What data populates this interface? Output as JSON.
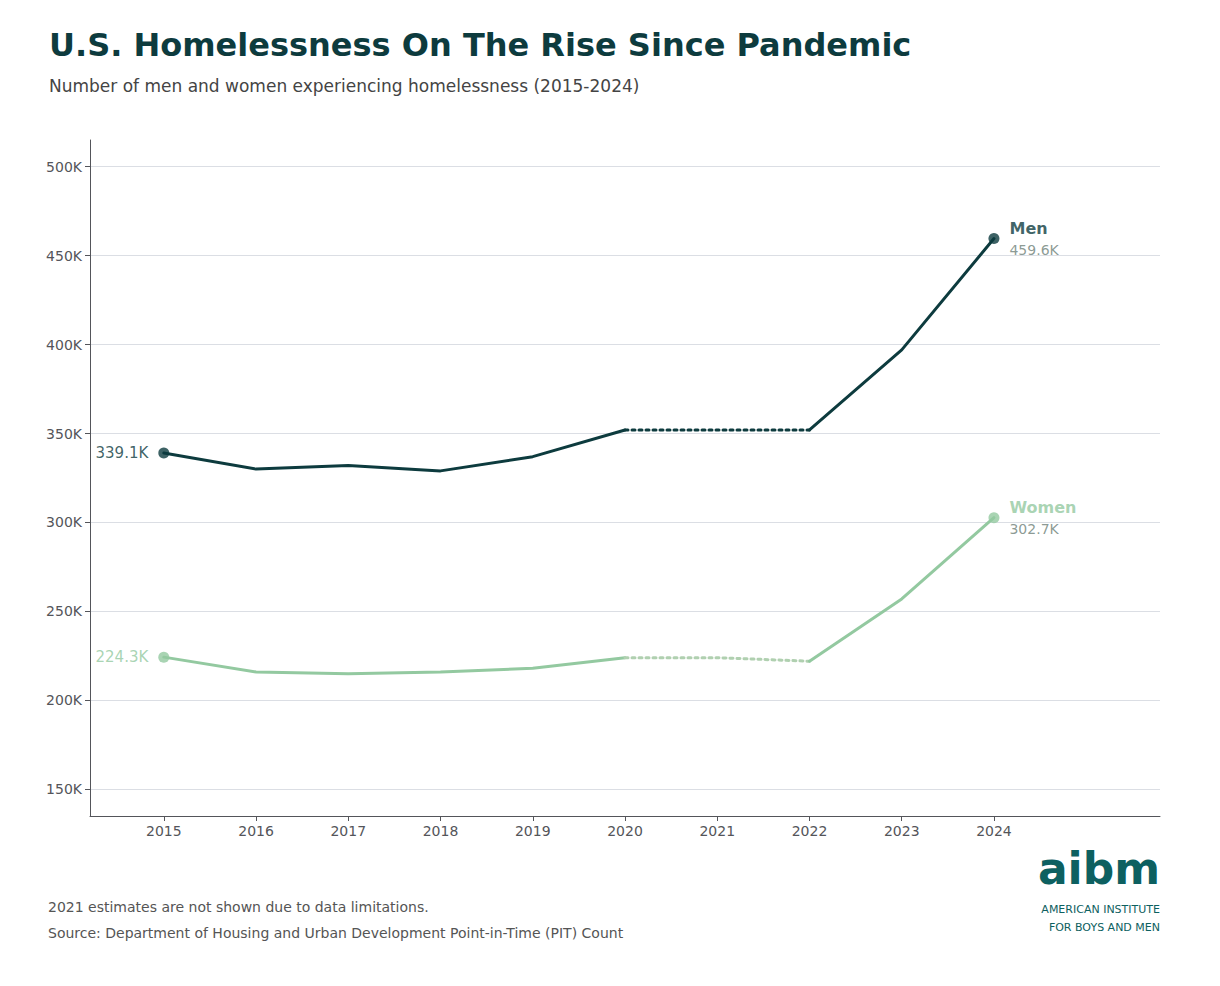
{
  "chart_data": {
    "type": "line",
    "title": "U.S. Homelessness On The Rise Since Pandemic",
    "subtitle": "Number of men and women experiencing homelessness (2015-2024)",
    "footnotes": [
      "2021 estimates are not shown due to data limitations.",
      "Source: Department of Housing and Urban Development Point-in-Time (PIT) Count"
    ],
    "logo": {
      "text": "aibm",
      "lines": [
        "AMERICAN INSTITUTE",
        "FOR BOYS AND MEN"
      ],
      "color": "#0d6060"
    },
    "xlim": [
      2014.2,
      2025.8
    ],
    "xticks": [
      2015,
      2016,
      2017,
      2018,
      2019,
      2020,
      2021,
      2022,
      2023,
      2024
    ],
    "ylim": [
      135000,
      515000
    ],
    "yticks": [
      {
        "value": 150000,
        "label": "150K"
      },
      {
        "value": 200000,
        "label": "200K"
      },
      {
        "value": 250000,
        "label": "250K"
      },
      {
        "value": 300000,
        "label": "300K"
      },
      {
        "value": 350000,
        "label": "350K"
      },
      {
        "value": 400000,
        "label": "400K"
      },
      {
        "value": 450000,
        "label": "450K"
      },
      {
        "value": 500000,
        "label": "500K"
      }
    ],
    "grid": "y",
    "marker": "circle",
    "series": [
      {
        "name": "Men",
        "color": "#0d3b3e",
        "start_label": "339.1K",
        "end_label": "459.6K",
        "segments": [
          {
            "line_style": "solid",
            "x": [
              2015,
              2016,
              2017,
              2018,
              2019,
              2020
            ],
            "values": [
              339100,
              330000,
              332000,
              329000,
              337000,
              352000
            ]
          },
          {
            "line_style": "dotted",
            "x": [
              2020,
              2021,
              2022
            ],
            "values": [
              352000,
              352000,
              352000
            ]
          },
          {
            "line_style": "solid",
            "x": [
              2022,
              2023,
              2024
            ],
            "values": [
              352000,
              397000,
              459600
            ]
          }
        ]
      },
      {
        "name": "Women",
        "color": "#93c9a0",
        "start_label": "224.3K",
        "end_label": "302.7K",
        "segments": [
          {
            "line_style": "solid",
            "x": [
              2015,
              2016,
              2017,
              2018,
              2019,
              2020
            ],
            "values": [
              224300,
              216000,
              215000,
              216000,
              218000,
              224000
            ]
          },
          {
            "line_style": "dotted",
            "color": "#b0d0b0",
            "x": [
              2020,
              2021,
              2022
            ],
            "values": [
              224000,
              224000,
              222000
            ]
          },
          {
            "line_style": "solid",
            "x": [
              2022,
              2023,
              2024
            ],
            "values": [
              222000,
              257000,
              302700
            ]
          }
        ]
      }
    ]
  }
}
